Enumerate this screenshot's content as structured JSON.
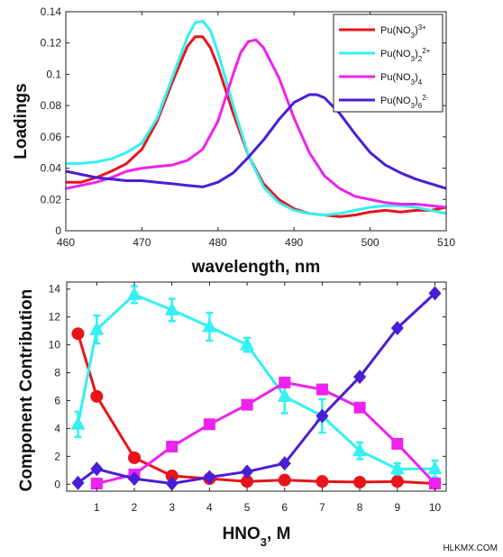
{
  "colors": {
    "red": "#e8141a",
    "cyan": "#34f0f0",
    "magenta": "#ee22ee",
    "blue": "#4a1ed6"
  },
  "chart_data": [
    {
      "type": "line",
      "xlabel": "wavelength, nm",
      "ylabel": "Loadings",
      "xlim": [
        460,
        510
      ],
      "ylim": [
        0,
        0.14
      ],
      "xticks": [
        "460",
        "470",
        "480",
        "490",
        "500",
        "510"
      ],
      "yticks": [
        "0",
        "0.02",
        "0.04",
        "0.06",
        "0.08",
        "0.1",
        "0.12",
        "0.14"
      ],
      "grid": false,
      "legend_position": "top-right",
      "series": [
        {
          "name": "Pu(NO3)3+",
          "label_parts": [
            [
              "Pu(NO",
              ""
            ],
            [
              "3",
              "sub"
            ],
            [
              ")",
              ""
            ],
            [
              "3+",
              "sup"
            ]
          ],
          "color_key": "red",
          "x": [
            460,
            462,
            464,
            466,
            468,
            470,
            472,
            474,
            476,
            477,
            478,
            479,
            480,
            482,
            484,
            486,
            488,
            490,
            492,
            494,
            496,
            498,
            500,
            502,
            504,
            506,
            508,
            510
          ],
          "y": [
            0.031,
            0.031,
            0.034,
            0.038,
            0.043,
            0.052,
            0.07,
            0.095,
            0.118,
            0.124,
            0.124,
            0.117,
            0.105,
            0.075,
            0.048,
            0.03,
            0.02,
            0.014,
            0.011,
            0.01,
            0.009,
            0.01,
            0.012,
            0.013,
            0.012,
            0.013,
            0.013,
            0.015
          ]
        },
        {
          "name": "Pu(NO3)2 2+",
          "label_parts": [
            [
              "Pu(NO",
              ""
            ],
            [
              "3",
              "sub"
            ],
            [
              ")",
              ""
            ],
            [
              "2",
              "sub"
            ],
            [
              "2+",
              "sup"
            ]
          ],
          "color_key": "cyan",
          "x": [
            460,
            462,
            464,
            466,
            468,
            470,
            472,
            474,
            476,
            477,
            478,
            479,
            480,
            482,
            484,
            486,
            488,
            490,
            492,
            494,
            496,
            498,
            500,
            502,
            504,
            506,
            508,
            510
          ],
          "y": [
            0.043,
            0.043,
            0.044,
            0.046,
            0.05,
            0.056,
            0.072,
            0.098,
            0.124,
            0.133,
            0.134,
            0.128,
            0.114,
            0.08,
            0.048,
            0.028,
            0.018,
            0.013,
            0.011,
            0.01,
            0.011,
            0.013,
            0.015,
            0.016,
            0.016,
            0.015,
            0.013,
            0.011
          ]
        },
        {
          "name": "Pu(NO3)4",
          "label_parts": [
            [
              "Pu(NO",
              ""
            ],
            [
              "3",
              "sub"
            ],
            [
              ")",
              ""
            ],
            [
              "4",
              "sub"
            ]
          ],
          "color_key": "magenta",
          "x": [
            460,
            462,
            464,
            466,
            468,
            470,
            472,
            474,
            476,
            478,
            480,
            481,
            482,
            483,
            484,
            485,
            486,
            488,
            490,
            492,
            494,
            496,
            498,
            500,
            502,
            504,
            506,
            508,
            510
          ],
          "y": [
            0.027,
            0.029,
            0.031,
            0.034,
            0.038,
            0.04,
            0.041,
            0.042,
            0.045,
            0.052,
            0.07,
            0.085,
            0.1,
            0.114,
            0.121,
            0.122,
            0.117,
            0.098,
            0.072,
            0.05,
            0.035,
            0.027,
            0.022,
            0.02,
            0.018,
            0.017,
            0.017,
            0.016,
            0.015
          ]
        },
        {
          "name": "Pu(NO3)6 2-",
          "label_parts": [
            [
              "Pu(NO",
              ""
            ],
            [
              "3",
              "sub"
            ],
            [
              ")",
              ""
            ],
            [
              "6",
              "sub"
            ],
            [
              "2-",
              "sup"
            ]
          ],
          "color_key": "blue",
          "x": [
            460,
            462,
            464,
            466,
            468,
            470,
            472,
            474,
            476,
            478,
            480,
            482,
            484,
            486,
            488,
            490,
            492,
            493,
            494,
            496,
            498,
            500,
            502,
            504,
            506,
            508,
            510
          ],
          "y": [
            0.038,
            0.036,
            0.034,
            0.033,
            0.032,
            0.032,
            0.031,
            0.03,
            0.029,
            0.028,
            0.031,
            0.037,
            0.047,
            0.058,
            0.071,
            0.082,
            0.087,
            0.087,
            0.085,
            0.075,
            0.062,
            0.05,
            0.042,
            0.037,
            0.033,
            0.03,
            0.027
          ]
        }
      ]
    },
    {
      "type": "line",
      "xlabel_parts": [
        [
          "HNO",
          ""
        ],
        [
          "3",
          "sub"
        ],
        [
          ", M",
          ""
        ]
      ],
      "ylabel": "Component Contribution",
      "xlim": [
        0.2,
        10.3
      ],
      "ylim": [
        -0.5,
        14.5
      ],
      "xticks": [
        "1",
        "2",
        "3",
        "4",
        "5",
        "6",
        "7",
        "8",
        "9",
        "10"
      ],
      "yticks": [
        "0",
        "2",
        "4",
        "6",
        "8",
        "10",
        "12",
        "14"
      ],
      "grid": false,
      "series": [
        {
          "name": "Pu(NO3)3+",
          "color_key": "red",
          "marker": "circle",
          "x": [
            0.5,
            1,
            2,
            3,
            4,
            5,
            6,
            7,
            8,
            9,
            10
          ],
          "y": [
            10.8,
            6.3,
            1.9,
            0.6,
            0.4,
            0.2,
            0.3,
            0.2,
            0.15,
            0.2,
            0.05
          ]
        },
        {
          "name": "Pu(NO3)2 2+",
          "color_key": "cyan",
          "marker": "triangle",
          "x": [
            0.5,
            1,
            2,
            3,
            4,
            5,
            6,
            7,
            8,
            9,
            10
          ],
          "y": [
            4.3,
            11.1,
            13.6,
            12.5,
            11.3,
            10.0,
            6.3,
            4.9,
            2.4,
            1.1,
            1.1
          ],
          "err": [
            0.9,
            1.0,
            0.6,
            0.8,
            1.0,
            0.5,
            1.2,
            1.2,
            0.6,
            0.4,
            0.6
          ]
        },
        {
          "name": "Pu(NO3)4",
          "color_key": "magenta",
          "marker": "square",
          "x": [
            1,
            2,
            3,
            4,
            5,
            6,
            7,
            8,
            9,
            10
          ],
          "y": [
            0.05,
            0.7,
            2.7,
            4.3,
            5.7,
            7.3,
            6.8,
            5.5,
            2.9,
            0.05
          ]
        },
        {
          "name": "Pu(NO3)6 2-",
          "color_key": "blue",
          "marker": "diamond",
          "x": [
            0.5,
            1,
            2,
            3,
            4,
            5,
            6,
            7,
            8,
            9,
            10
          ],
          "y": [
            0.1,
            1.1,
            0.4,
            0.05,
            0.5,
            0.9,
            1.5,
            4.9,
            7.7,
            11.2,
            13.7
          ]
        }
      ]
    }
  ],
  "watermark": "HLKMX.COM"
}
